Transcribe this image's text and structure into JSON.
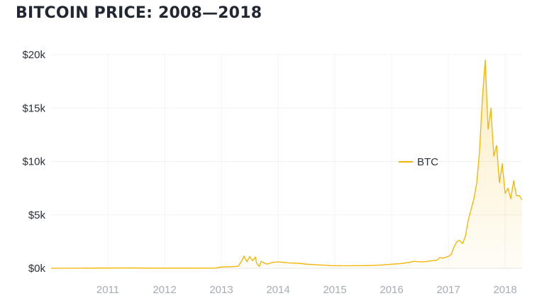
{
  "chart_data": {
    "type": "area",
    "title": "BITCOIN PRICE: 2008—2018",
    "xlabel": "",
    "ylabel": "",
    "y_tick_labels": [
      "$0k",
      "$5k",
      "$10k",
      "$15k",
      "$20k"
    ],
    "y_ticks": [
      0,
      5000,
      10000,
      15000,
      20000
    ],
    "ylim": [
      0,
      20000
    ],
    "x_tick_labels": [
      "2011",
      "2012",
      "2013",
      "2014",
      "2015",
      "2016",
      "2017",
      "2018"
    ],
    "x_ticks": [
      2011,
      2012,
      2013,
      2014,
      2015,
      2016,
      2017,
      2018
    ],
    "xlim": [
      2010.0,
      2018.3
    ],
    "grid": true,
    "legend_position": "right",
    "series": [
      {
        "name": "BTC",
        "color": "#f5b400",
        "x": [
          2010.0,
          2010.5,
          2011.0,
          2011.45,
          2011.6,
          2012.0,
          2012.5,
          2012.9,
          2013.0,
          2013.2,
          2013.3,
          2013.38,
          2013.4,
          2013.45,
          2013.5,
          2013.55,
          2013.6,
          2013.62,
          2013.67,
          2013.7,
          2013.75,
          2013.8,
          2013.85,
          2013.9,
          2014.0,
          2014.1,
          2014.2,
          2014.3,
          2014.4,
          2014.5,
          2014.6,
          2014.7,
          2014.8,
          2014.9,
          2015.0,
          2015.2,
          2015.4,
          2015.6,
          2015.8,
          2016.0,
          2016.2,
          2016.4,
          2016.5,
          2016.6,
          2016.7,
          2016.8,
          2016.85,
          2016.9,
          2017.0,
          2017.05,
          2017.1,
          2017.15,
          2017.2,
          2017.25,
          2017.3,
          2017.35,
          2017.4,
          2017.45,
          2017.5,
          2017.55,
          2017.6,
          2017.65,
          2017.7,
          2017.75,
          2017.8,
          2017.85,
          2017.9,
          2017.95,
          2018.0,
          2018.05,
          2018.1,
          2018.15,
          2018.2,
          2018.25,
          2018.3
        ],
        "values": [
          0,
          5,
          20,
          30,
          15,
          10,
          15,
          20,
          120,
          150,
          200,
          900,
          1150,
          600,
          1100,
          700,
          1050,
          500,
          150,
          650,
          500,
          400,
          450,
          550,
          600,
          550,
          500,
          480,
          450,
          380,
          350,
          320,
          300,
          250,
          240,
          230,
          240,
          250,
          300,
          380,
          450,
          650,
          600,
          620,
          700,
          750,
          1000,
          950,
          1100,
          1300,
          2000,
          2500,
          2600,
          2300,
          3000,
          4500,
          5500,
          6500,
          8000,
          11000,
          16000,
          19500,
          13000,
          15000,
          10500,
          11500,
          8000,
          9800,
          7000,
          7500,
          6500,
          8200,
          6800,
          6800,
          6400
        ]
      }
    ]
  }
}
